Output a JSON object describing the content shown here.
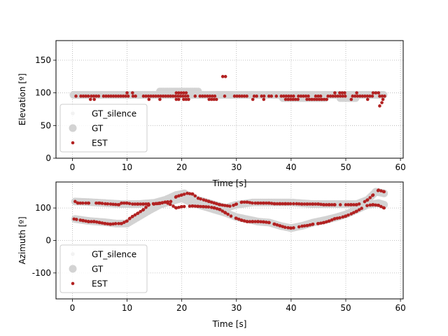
{
  "chart_data": [
    {
      "type": "scatter",
      "title": "",
      "xlabel": "Time [s]",
      "ylabel": "Elevation [º]",
      "xlim": [
        -3,
        60.5
      ],
      "ylim": [
        0,
        180
      ],
      "xticks": [
        0,
        10,
        20,
        30,
        40,
        50,
        60
      ],
      "yticks": [
        0,
        50,
        100,
        150
      ],
      "grid": true,
      "legend_position": "lower-left",
      "legend": [
        "GT_silence",
        "GT",
        "EST"
      ],
      "series": [
        {
          "name": "GT_silence",
          "color": "#f2f2f2",
          "x": [],
          "y": []
        },
        {
          "name": "GT",
          "color": "#d3d3d3",
          "segments": [
            {
              "x0": 0.2,
              "x1": 57.2,
              "y": 97
            },
            {
              "x0": 16.0,
              "x1": 23.0,
              "y": 102
            },
            {
              "x0": 38.5,
              "x1": 46.5,
              "y": 92
            },
            {
              "x0": 49.0,
              "x1": 52.0,
              "y": 92
            }
          ]
        },
        {
          "name": "EST",
          "color": "#b22222",
          "segments": [
            {
              "x0": 0.2,
              "x1": 3.0,
              "y": 95
            },
            {
              "x0": 3.0,
              "x1": 12.5,
              "y": 95
            },
            {
              "x0": 13.0,
              "x1": 57.2,
              "y": 95
            },
            {
              "x0": 19.0,
              "x1": 21.5,
              "y": 100
            },
            {
              "x0": 19.0,
              "x1": 21.5,
              "y": 90
            },
            {
              "x0": 25.0,
              "x1": 27.0,
              "y": 90
            },
            {
              "x0": 39.0,
              "x1": 41.5,
              "y": 90
            },
            {
              "x0": 42.0,
              "x1": 47.0,
              "y": 90
            },
            {
              "x0": 48.0,
              "x1": 50.0,
              "y": 100
            }
          ],
          "points": [
            {
              "x": 27.5,
              "y": 125
            },
            {
              "x": 28.0,
              "y": 125
            },
            {
              "x": 3.3,
              "y": 90
            },
            {
              "x": 4.0,
              "y": 90
            },
            {
              "x": 10.0,
              "y": 100
            },
            {
              "x": 11.0,
              "y": 100
            },
            {
              "x": 14.0,
              "y": 90
            },
            {
              "x": 16.0,
              "y": 90
            },
            {
              "x": 33.0,
              "y": 90
            },
            {
              "x": 35.0,
              "y": 90
            },
            {
              "x": 51.0,
              "y": 90
            },
            {
              "x": 52.0,
              "y": 100
            },
            {
              "x": 54.0,
              "y": 90
            },
            {
              "x": 55.0,
              "y": 100
            },
            {
              "x": 55.5,
              "y": 100
            },
            {
              "x": 56.0,
              "y": 100
            },
            {
              "x": 56.2,
              "y": 80
            },
            {
              "x": 56.6,
              "y": 85
            },
            {
              "x": 56.8,
              "y": 90
            }
          ]
        }
      ]
    },
    {
      "type": "scatter",
      "title": "",
      "xlabel": "Time [s]",
      "ylabel": "Azimuth [º]",
      "xlim": [
        -3,
        60.5
      ],
      "ylim": [
        -180,
        180
      ],
      "xticks": [
        0,
        10,
        20,
        30,
        40,
        50,
        60
      ],
      "yticks": [
        -100,
        0,
        100
      ],
      "grid": true,
      "legend_position": "lower-left",
      "legend": [
        "GT_silence",
        "GT",
        "EST"
      ],
      "series": [
        {
          "name": "GT_silence",
          "color": "#f2f2f2",
          "x": [],
          "y": []
        },
        {
          "name": "GT",
          "color": "#d3d3d3",
          "tracks": [
            {
              "x": [
                0.5,
                3,
                6,
                8,
                10,
                12,
                14,
                16,
                18,
                20,
                22,
                24,
                26,
                28,
                30,
                32,
                34,
                36,
                38,
                40,
                42,
                44,
                46,
                48,
                50,
                52,
                54,
                56,
                57
              ],
              "y": [
                66,
                60,
                56,
                52,
                52,
                72,
                92,
                110,
                120,
                130,
                115,
                105,
                95,
                85,
                72,
                65,
                58,
                55,
                45,
                38,
                45,
                55,
                62,
                70,
                80,
                95,
                110,
                115,
                110
              ]
            },
            {
              "x": [
                0.5,
                3,
                6,
                9,
                12,
                15,
                17,
                19,
                20.5,
                22,
                24,
                26,
                28,
                30,
                33,
                36,
                40,
                44,
                48,
                52,
                54,
                55.5,
                57
              ],
              "y": [
                120,
                118,
                115,
                112,
                112,
                116,
                125,
                140,
                145,
                130,
                120,
                110,
                100,
                110,
                117,
                117,
                117,
                112,
                112,
                112,
                125,
                150,
                145
              ]
            }
          ]
        },
        {
          "name": "EST",
          "color": "#b22222",
          "tracks": [
            {
              "x": [
                0.3,
                1,
                2,
                3,
                4,
                5,
                6,
                7,
                8,
                9,
                10,
                10.5,
                11,
                12,
                13,
                14,
                15,
                16,
                17,
                18,
                19,
                20,
                21,
                22,
                23,
                24,
                25,
                26,
                27,
                28,
                29,
                30,
                31,
                32,
                33,
                34,
                35,
                36,
                37,
                38,
                39,
                40,
                41,
                42,
                43,
                44,
                45,
                46,
                47,
                48,
                49,
                50,
                51,
                52,
                53,
                54,
                55,
                56,
                57
              ],
              "y": [
                66,
                64,
                61,
                58,
                58,
                55,
                52,
                50,
                52,
                52,
                60,
                68,
                74,
                84,
                95,
                110,
                112,
                115,
                118,
                110,
                100,
                104,
                105,
                106,
                105,
                104,
                103,
                100,
                95,
                85,
                75,
                68,
                62,
                58,
                58,
                58,
                57,
                55,
                50,
                45,
                40,
                38,
                40,
                44,
                46,
                50,
                52,
                55,
                60,
                67,
                70,
                75,
                82,
                90,
                100,
                108,
                110,
                108,
                100
              ]
            },
            {
              "x": [
                0.5,
                1,
                2,
                3,
                5,
                6,
                7,
                8.5,
                9,
                10,
                11,
                12,
                13,
                16,
                17,
                18,
                19,
                20,
                21,
                22,
                23,
                24,
                25,
                27,
                29,
                30,
                31,
                32,
                33,
                34,
                35,
                36,
                37,
                38,
                39,
                40,
                41,
                42,
                43,
                44,
                45,
                46,
                47,
                48,
                49,
                50,
                51,
                52,
                53,
                54,
                55,
                56,
                57
              ],
              "y": [
                120,
                115,
                115,
                115,
                115,
                113,
                112,
                110,
                115,
                115,
                112,
                112,
                112,
                114,
                118,
                120,
                135,
                140,
                145,
                143,
                130,
                125,
                120,
                110,
                105,
                112,
                118,
                118,
                115,
                115,
                115,
                115,
                113,
                113,
                113,
                113,
                113,
                112,
                112,
                112,
                112,
                110,
                110,
                110,
                110,
                110,
                110,
                110,
                115,
                125,
                140,
                155,
                150
              ]
            }
          ]
        }
      ]
    }
  ]
}
